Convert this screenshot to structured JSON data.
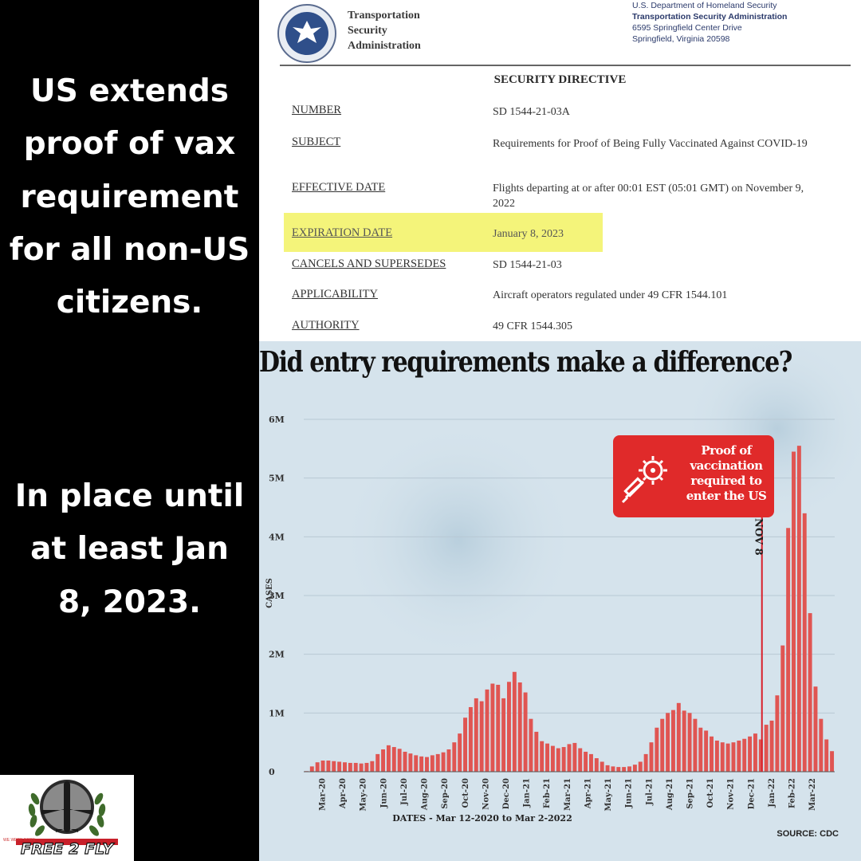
{
  "left_panel": {
    "headline": "US extends\nproof of vax\nrequirement\nfor all non-US\ncitizens.",
    "until_text": "In place until\nat least Jan\n8, 2023."
  },
  "logo": {
    "icon": "airplane-wreath-logo-icon",
    "wordmark": "FREE 2 FLY",
    "tagline": "WE WERE BORN"
  },
  "directive": {
    "seal_icon": "tsa-eagle-seal-icon",
    "agency_name": "Transportation\nSecurity\nAdministration",
    "address": {
      "line1": "U.S. Department of Homeland Security",
      "line2": "Transportation Security Administration",
      "line3": "6595 Springfield Center Drive",
      "line4": "Springfield, Virginia 20598"
    },
    "title": "SECURITY DIRECTIVE",
    "highlight_color": "#f4f47a",
    "rows": [
      {
        "label": "NUMBER",
        "value": "SD 1544-21-03A"
      },
      {
        "label": "SUBJECT",
        "value": "Requirements for Proof of Being Fully Vaccinated Against COVID-19"
      },
      {
        "label": "EFFECTIVE DATE",
        "value": "Flights departing at or after 00:01 EST (05:01 GMT) on November 9, 2022"
      },
      {
        "label": "EXPIRATION DATE",
        "value": "January 8, 2023"
      },
      {
        "label": "CANCELS AND SUPERSEDES",
        "value": "SD 1544-21-03"
      },
      {
        "label": "APPLICABILITY",
        "value": "Aircraft operators regulated under 49 CFR 1544.101"
      },
      {
        "label": "AUTHORITY",
        "value": "49 CFR 1544.305"
      }
    ]
  },
  "chart": {
    "callout_text": "Proof of\nvaccination\nrequired to\nenter the US",
    "callout_icon": "vaccine-syringe-virus-icon",
    "source": "SOURCE: CDC"
  },
  "chart_data": {
    "type": "bar",
    "title": "Did entry requirements make a difference?",
    "ylabel": "CASES",
    "xlabel": "DATES - Mar 12-2020 to Mar 2-2022",
    "ylim": [
      0,
      6000000
    ],
    "y_ticks": [
      {
        "value": 0,
        "label": "0"
      },
      {
        "value": 1000000,
        "label": "1M"
      },
      {
        "value": 2000000,
        "label": "2M"
      },
      {
        "value": 3000000,
        "label": "3M"
      },
      {
        "value": 4000000,
        "label": "4M"
      },
      {
        "value": 5000000,
        "label": "5M"
      },
      {
        "value": 6000000,
        "label": "6M"
      }
    ],
    "x_tick_labels": [
      "Mar-20",
      "Apr-20",
      "May-20",
      "Jun-20",
      "Jul-20",
      "Aug-20",
      "Sep-20",
      "Oct-20",
      "Nov-20",
      "Dec-20",
      "Jan-21",
      "Feb-21",
      "Mar-21",
      "Apr-21",
      "May-21",
      "Jun-21",
      "Jul-21",
      "Aug-21",
      "Sep-21",
      "Oct-21",
      "Nov-21",
      "Dec-21",
      "Jan-22",
      "Feb-22",
      "Mar-22"
    ],
    "marker": {
      "label": "NOV 8",
      "after_bar_index": 83,
      "color": "#d9202a"
    },
    "bar_color": "#e05552",
    "values": [
      10000,
      90000,
      160000,
      190000,
      190000,
      180000,
      170000,
      160000,
      150000,
      150000,
      140000,
      150000,
      180000,
      300000,
      380000,
      450000,
      420000,
      390000,
      340000,
      310000,
      280000,
      260000,
      250000,
      280000,
      300000,
      330000,
      380000,
      500000,
      650000,
      920000,
      1100000,
      1250000,
      1200000,
      1400000,
      1500000,
      1480000,
      1250000,
      1530000,
      1700000,
      1520000,
      1350000,
      900000,
      680000,
      520000,
      480000,
      440000,
      400000,
      420000,
      470000,
      490000,
      400000,
      340000,
      300000,
      230000,
      170000,
      110000,
      90000,
      80000,
      80000,
      90000,
      120000,
      170000,
      300000,
      500000,
      750000,
      900000,
      1000000,
      1050000,
      1170000,
      1040000,
      1000000,
      900000,
      750000,
      700000,
      600000,
      530000,
      500000,
      480000,
      500000,
      530000,
      560000,
      600000,
      650000,
      550000,
      800000,
      870000,
      1300000,
      2150000,
      4150000,
      5450000,
      5550000,
      4400000,
      2700000,
      1450000,
      900000,
      550000,
      350000
    ]
  }
}
